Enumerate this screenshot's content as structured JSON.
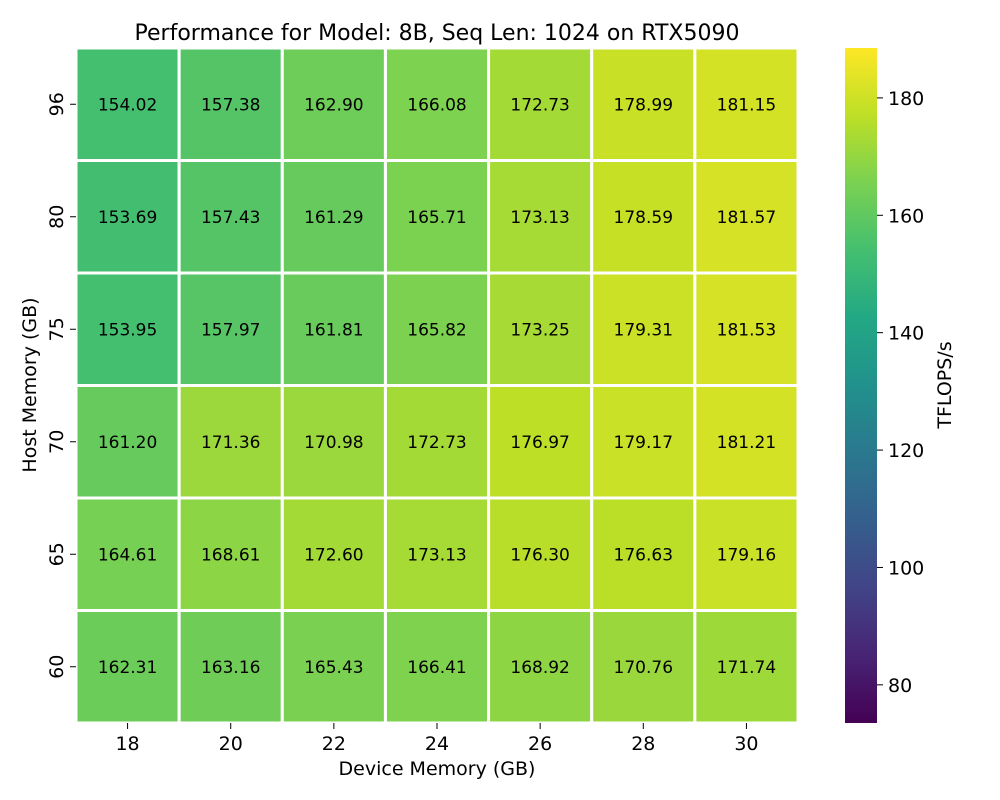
{
  "chart_data": {
    "type": "heatmap",
    "title": "Performance for Model: 8B, Seq Len: 1024 on RTX5090",
    "xlabel": "Device Memory (GB)",
    "ylabel": "Host Memory (GB)",
    "x_categories": [
      "18",
      "20",
      "22",
      "24",
      "26",
      "28",
      "30"
    ],
    "y_categories": [
      "96",
      "80",
      "75",
      "70",
      "65",
      "60"
    ],
    "values": [
      [
        154.02,
        157.38,
        162.9,
        166.08,
        172.73,
        178.99,
        181.15
      ],
      [
        153.69,
        157.43,
        161.29,
        165.71,
        173.13,
        178.59,
        181.57
      ],
      [
        153.95,
        157.97,
        161.81,
        165.82,
        173.25,
        179.31,
        181.53
      ],
      [
        161.2,
        171.36,
        170.98,
        172.73,
        176.97,
        179.17,
        181.21
      ],
      [
        164.61,
        168.61,
        172.6,
        173.13,
        176.3,
        176.63,
        179.16
      ],
      [
        162.31,
        163.16,
        165.43,
        166.41,
        168.92,
        170.76,
        171.74
      ]
    ],
    "colormap": "viridis",
    "colorbar": {
      "label": "TFLOPS/s",
      "range": [
        73.5,
        188.5
      ],
      "ticks": [
        80,
        100,
        120,
        140,
        160,
        180
      ]
    },
    "grid_line_color": "#ffffff"
  }
}
